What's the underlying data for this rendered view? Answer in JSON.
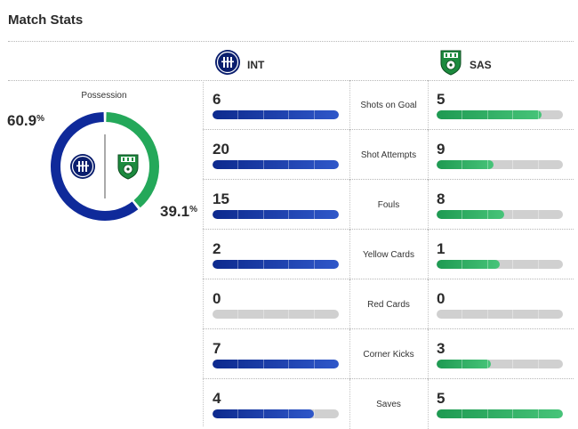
{
  "header": {
    "title": "Match Stats"
  },
  "teams": {
    "home": {
      "abbr": "INT",
      "icon": "inter-crest-icon",
      "color": "#10239e"
    },
    "away": {
      "abbr": "SAS",
      "icon": "sassuolo-crest-icon",
      "color": "#1fa35c"
    }
  },
  "possession": {
    "label": "Possession",
    "home_value": "60.9",
    "away_value": "39.1",
    "unit": "%",
    "home_fraction": 0.609,
    "away_fraction": 0.391
  },
  "stats": [
    {
      "label": "Shots on Goal",
      "home": "6",
      "away": "5",
      "home_fill": 1.0,
      "away_fill": 0.833
    },
    {
      "label": "Shot Attempts",
      "home": "20",
      "away": "9",
      "home_fill": 1.0,
      "away_fill": 0.45
    },
    {
      "label": "Fouls",
      "home": "15",
      "away": "8",
      "home_fill": 1.0,
      "away_fill": 0.533
    },
    {
      "label": "Yellow Cards",
      "home": "2",
      "away": "1",
      "home_fill": 1.0,
      "away_fill": 0.5
    },
    {
      "label": "Red Cards",
      "home": "0",
      "away": "0",
      "home_fill": 0.0,
      "away_fill": 0.0
    },
    {
      "label": "Corner Kicks",
      "home": "7",
      "away": "3",
      "home_fill": 1.0,
      "away_fill": 0.429
    },
    {
      "label": "Saves",
      "home": "4",
      "away": "5",
      "home_fill": 0.8,
      "away_fill": 1.0
    }
  ]
}
